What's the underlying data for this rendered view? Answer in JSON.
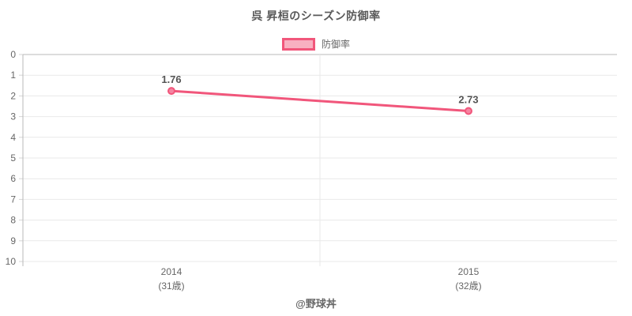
{
  "header": {
    "title": "呉 昇桓のシーズン防御率"
  },
  "legend": {
    "label": "防御率"
  },
  "footer": {
    "credit": "@野球丼"
  },
  "colors": {
    "accent": "#f1567b",
    "accent_fill": "#f8b0c1",
    "point_fill": "#f584a1",
    "grid": "#e9e9e9",
    "axis": "#b9b9b9",
    "tick": "#d6d6d6",
    "text": "#666666",
    "text_dark": "#555555"
  },
  "chart_data": {
    "type": "line",
    "title": "呉 昇桓のシーズン防御率",
    "categories": [
      "2014",
      "2015"
    ],
    "category_sublabels": [
      "(31歳)",
      "(32歳)"
    ],
    "series": [
      {
        "name": "防御率",
        "values": [
          1.76,
          2.73
        ]
      }
    ],
    "data_labels": [
      "1.76",
      "2.73"
    ],
    "xlabel": "",
    "ylabel": "",
    "ylim": [
      0,
      10
    ],
    "y_ticks": [
      0,
      1,
      2,
      3,
      4,
      5,
      6,
      7,
      8,
      9,
      10
    ],
    "y_reversed": true,
    "grid": true,
    "legend_position": "top",
    "footer": "@野球丼"
  }
}
